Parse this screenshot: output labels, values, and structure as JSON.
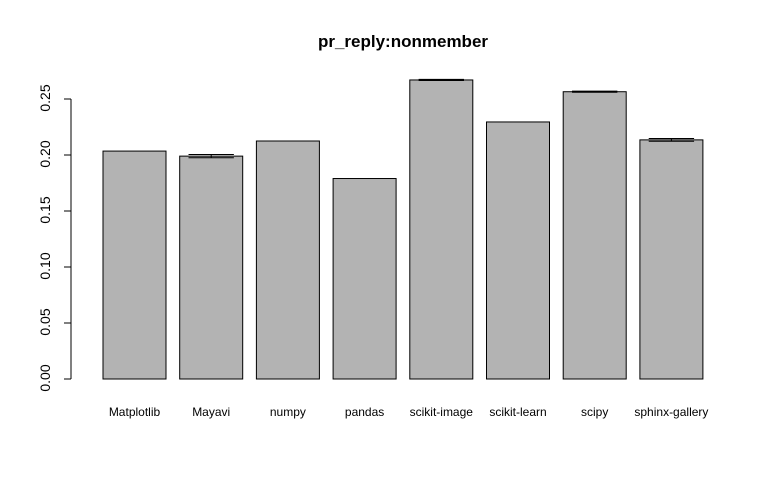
{
  "colors": {
    "background": "#ffffff",
    "bar_fill": "#b3b3b3",
    "bar_stroke": "#000000",
    "axis": "#000000"
  },
  "chart_data": {
    "type": "bar",
    "title": "pr_reply:nonmember",
    "xlabel": "",
    "ylabel": "",
    "categories": [
      "Matplotlib",
      "Mayavi",
      "numpy",
      "pandas",
      "scikit-image",
      "scikit-learn",
      "scipy",
      "sphinx-gallery"
    ],
    "values": [
      0.2035,
      0.199,
      0.2125,
      0.179,
      0.267,
      0.2295,
      0.2565,
      0.2135
    ],
    "error_bars": [
      0.0,
      0.0015,
      0.0,
      0.0,
      0.0005,
      0.0,
      0.0005,
      0.0012
    ],
    "yticks": [
      "0.00",
      "0.05",
      "0.10",
      "0.15",
      "0.20",
      "0.25"
    ],
    "ylim": [
      0,
      0.28
    ],
    "grid": false,
    "legend": "none"
  }
}
